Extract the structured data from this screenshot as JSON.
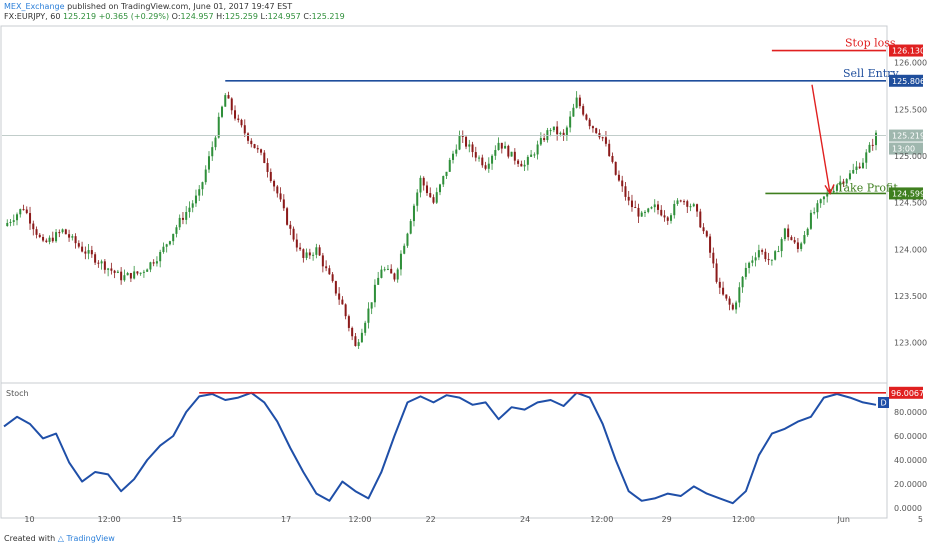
{
  "header": {
    "publisher": "MEX_Exchange",
    "published_text": "published on TradingView.com, June 01, 2017 19:47 EST",
    "symbol_line": "FX:EURJPY, 60",
    "last": "125.219",
    "change": "+0.365 (+0.29%)",
    "ohlc": [
      {
        "label": "O:",
        "value": "124.957"
      },
      {
        "label": "H:",
        "value": "125.259"
      },
      {
        "label": "L:",
        "value": "124.957"
      },
      {
        "label": "C:",
        "value": "125.219"
      }
    ]
  },
  "footer": {
    "created_with": "Created with",
    "brand": "TradingView"
  },
  "colors": {
    "up": "#2f8f3a",
    "down": "#8b1a1a",
    "blue": "#1f4e9c",
    "red": "#e02020",
    "green": "#3f7f1f"
  },
  "chart_data": [
    {
      "type": "candlestick",
      "title": "",
      "ylim": [
        122.6,
        126.35
      ],
      "y_ticks": [
        "126.000",
        "125.500",
        "125.000",
        "124.500",
        "124.000",
        "123.500",
        "123.000"
      ],
      "x_labels": [
        "10",
        "12:00",
        "15",
        "17",
        "12:00",
        "22",
        "24",
        "12:00",
        "29",
        "12:00",
        "Jun",
        "5"
      ],
      "close_path": [
        [
          0,
          124.25
        ],
        [
          6,
          124.45
        ],
        [
          12,
          124.05
        ],
        [
          18,
          124.2
        ],
        [
          24,
          124.0
        ],
        [
          30,
          123.85
        ],
        [
          36,
          123.7
        ],
        [
          42,
          123.75
        ],
        [
          48,
          123.95
        ],
        [
          54,
          124.3
        ],
        [
          60,
          124.6
        ],
        [
          64,
          125.1
        ],
        [
          68,
          125.65
        ],
        [
          72,
          125.35
        ],
        [
          76,
          125.15
        ],
        [
          80,
          124.95
        ],
        [
          84,
          124.6
        ],
        [
          88,
          124.2
        ],
        [
          92,
          123.9
        ],
        [
          96,
          124.0
        ],
        [
          100,
          123.7
        ],
        [
          104,
          123.4
        ],
        [
          108,
          122.95
        ],
        [
          112,
          123.35
        ],
        [
          116,
          123.8
        ],
        [
          120,
          123.7
        ],
        [
          124,
          124.2
        ],
        [
          128,
          124.75
        ],
        [
          132,
          124.5
        ],
        [
          136,
          124.85
        ],
        [
          140,
          125.2
        ],
        [
          144,
          125.05
        ],
        [
          148,
          124.9
        ],
        [
          152,
          125.15
        ],
        [
          156,
          125.0
        ],
        [
          160,
          124.9
        ],
        [
          164,
          125.1
        ],
        [
          168,
          125.3
        ],
        [
          172,
          125.2
        ],
        [
          176,
          125.6
        ],
        [
          180,
          125.35
        ],
        [
          184,
          125.2
        ],
        [
          188,
          124.8
        ],
        [
          192,
          124.5
        ],
        [
          196,
          124.35
        ],
        [
          200,
          124.45
        ],
        [
          204,
          124.35
        ],
        [
          208,
          124.55
        ],
        [
          212,
          124.45
        ],
        [
          216,
          124.1
        ],
        [
          220,
          123.55
        ],
        [
          224,
          123.35
        ],
        [
          228,
          123.8
        ],
        [
          232,
          124.0
        ],
        [
          236,
          123.85
        ],
        [
          240,
          124.2
        ],
        [
          244,
          124.0
        ],
        [
          248,
          124.35
        ],
        [
          252,
          124.55
        ],
        [
          256,
          124.7
        ],
        [
          260,
          124.8
        ],
        [
          264,
          124.95
        ],
        [
          268,
          125.22
        ]
      ],
      "levels": [
        {
          "name": "Stop loss",
          "value": 126.13,
          "tag": "126.130",
          "color": "#e02020"
        },
        {
          "name": "Sell Entry",
          "value": 125.806,
          "tag": "125.806",
          "color": "#1f4e9c"
        },
        {
          "name": "Take Profit",
          "value": 124.599,
          "tag": "124.599",
          "color": "#3f7f1f"
        }
      ],
      "last_price": {
        "value": 125.219,
        "tag": "125.219",
        "countdown": "13:00"
      }
    },
    {
      "type": "line",
      "title": "Stoch",
      "ylim": [
        -5,
        100
      ],
      "y_ticks": [
        "80.0000",
        "60.0000",
        "40.0000",
        "20.0000",
        "0.0000"
      ],
      "level": {
        "value": 96.0067,
        "tag": "96.0067",
        "color": "#e02020"
      },
      "legend_badge": "D",
      "series": [
        {
          "values": [
            [
              0,
              68
            ],
            [
              4,
              76
            ],
            [
              8,
              70
            ],
            [
              12,
              58
            ],
            [
              16,
              62
            ],
            [
              20,
              38
            ],
            [
              24,
              22
            ],
            [
              28,
              30
            ],
            [
              32,
              28
            ],
            [
              36,
              14
            ],
            [
              40,
              24
            ],
            [
              44,
              40
            ],
            [
              48,
              52
            ],
            [
              52,
              60
            ],
            [
              56,
              80
            ],
            [
              60,
              93
            ],
            [
              64,
              95
            ],
            [
              68,
              90
            ],
            [
              72,
              92
            ],
            [
              76,
              96
            ],
            [
              80,
              88
            ],
            [
              84,
              72
            ],
            [
              88,
              50
            ],
            [
              92,
              30
            ],
            [
              96,
              12
            ],
            [
              100,
              6
            ],
            [
              104,
              22
            ],
            [
              108,
              14
            ],
            [
              112,
              8
            ],
            [
              116,
              30
            ],
            [
              120,
              60
            ],
            [
              124,
              88
            ],
            [
              128,
              93
            ],
            [
              132,
              88
            ],
            [
              136,
              94
            ],
            [
              140,
              92
            ],
            [
              144,
              86
            ],
            [
              148,
              88
            ],
            [
              152,
              74
            ],
            [
              156,
              84
            ],
            [
              160,
              82
            ],
            [
              164,
              88
            ],
            [
              168,
              90
            ],
            [
              172,
              85
            ],
            [
              176,
              96
            ],
            [
              180,
              92
            ],
            [
              184,
              70
            ],
            [
              188,
              40
            ],
            [
              192,
              14
            ],
            [
              196,
              6
            ],
            [
              200,
              8
            ],
            [
              204,
              12
            ],
            [
              208,
              10
            ],
            [
              212,
              18
            ],
            [
              216,
              12
            ],
            [
              220,
              8
            ],
            [
              224,
              4
            ],
            [
              228,
              14
            ],
            [
              232,
              44
            ],
            [
              236,
              62
            ],
            [
              240,
              66
            ],
            [
              244,
              72
            ],
            [
              248,
              76
            ],
            [
              252,
              92
            ],
            [
              256,
              95
            ],
            [
              260,
              92
            ],
            [
              264,
              88
            ],
            [
              268,
              86
            ]
          ]
        }
      ]
    }
  ]
}
